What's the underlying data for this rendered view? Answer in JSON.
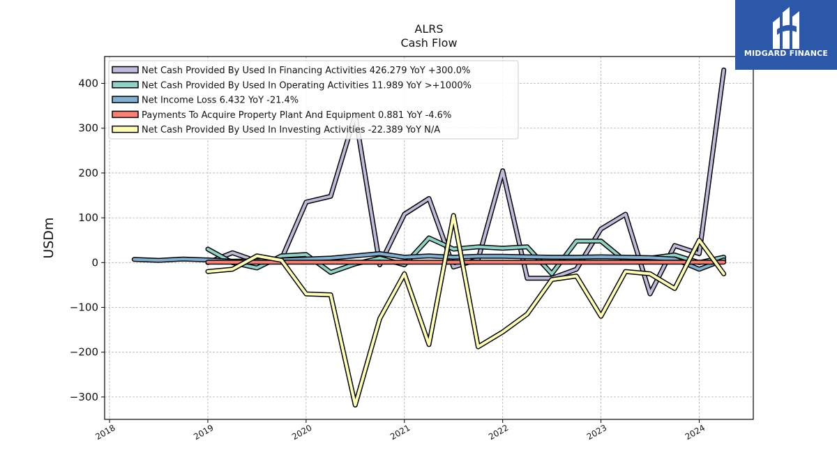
{
  "brand": {
    "name": "MIDGARD FINANCE",
    "icon": "midgard-logo-icon",
    "color": "#2b58a8"
  },
  "chart_data": {
    "type": "line",
    "title": "ALRS",
    "subtitle": "Cash Flow",
    "ylabel": "USDm",
    "xlabel": "",
    "ylim": [
      -350,
      460
    ],
    "xlim": [
      2017.95,
      2024.55
    ],
    "yticks": [
      400,
      300,
      200,
      100,
      0,
      -100,
      -200,
      -300
    ],
    "ytick_labels": [
      "400",
      "300",
      "200",
      "100",
      "0",
      "−100",
      "−200",
      "−300"
    ],
    "xticks": [
      2018,
      2019,
      2020,
      2021,
      2022,
      2023,
      2024
    ],
    "xtick_labels": [
      "2018",
      "2019",
      "2020",
      "2021",
      "2022",
      "2023",
      "2024"
    ],
    "grid": true,
    "legend_position": "top-left",
    "series": [
      {
        "name": "Net Cash Provided By Used In Financing Activities",
        "legend": "Net Cash Provided By Used In Financing Activities  426.279 YoY +300.0%",
        "color": "#bebada",
        "x": [
          2019.0,
          2019.25,
          2019.5,
          2019.75,
          2020.0,
          2020.25,
          2020.5,
          2020.75,
          2021.0,
          2021.25,
          2021.5,
          2021.75,
          2022.0,
          2022.25,
          2022.5,
          2022.75,
          2023.0,
          2023.25,
          2023.5,
          2023.75,
          2024.0,
          2024.25
        ],
        "y": [
          0,
          22,
          3,
          8,
          135,
          148,
          330,
          -5,
          108,
          143,
          -10,
          7,
          205,
          -35,
          -35,
          -15,
          75,
          108,
          -70,
          38,
          20,
          430
        ]
      },
      {
        "name": "Net Cash Provided By Used In Operating Activities",
        "legend": "Net Cash Provided By Used In Operating Activities  11.989 YoY >+1000%",
        "color": "#8dd3c7",
        "x": [
          2019.0,
          2019.25,
          2019.5,
          2019.75,
          2020.0,
          2020.25,
          2020.5,
          2020.75,
          2021.0,
          2021.25,
          2021.5,
          2021.75,
          2022.0,
          2022.25,
          2022.5,
          2022.75,
          2023.0,
          2023.25,
          2023.5,
          2023.75,
          2024.0,
          2024.25
        ],
        "y": [
          30,
          0,
          -12,
          15,
          18,
          -22,
          -3,
          10,
          -5,
          55,
          30,
          35,
          32,
          35,
          -25,
          48,
          48,
          3,
          10,
          17,
          0,
          12
        ]
      },
      {
        "name": "Net Income Loss",
        "legend": "Net Income Loss  6.432 YoY -21.4%",
        "color": "#80b1d3",
        "x": [
          2018.25,
          2018.5,
          2018.75,
          2019.0,
          2019.25,
          2019.5,
          2019.75,
          2020.0,
          2020.25,
          2020.5,
          2020.75,
          2021.0,
          2021.25,
          2021.5,
          2021.75,
          2022.0,
          2022.25,
          2022.5,
          2022.75,
          2023.0,
          2023.25,
          2023.5,
          2023.75,
          2024.0,
          2024.25
        ],
        "y": [
          7,
          5,
          8,
          6,
          3,
          4,
          6,
          8,
          10,
          15,
          20,
          12,
          15,
          12,
          14,
          14,
          13,
          12,
          12,
          13,
          12,
          11,
          8,
          -15,
          6
        ]
      },
      {
        "name": "Payments To Acquire Property Plant And Equipment",
        "legend": "Payments To Acquire Property Plant And Equipment  0.881 YoY -4.6%",
        "color": "#fb8072",
        "x": [
          2019.0,
          2019.25,
          2019.5,
          2019.75,
          2020.0,
          2020.25,
          2020.5,
          2020.75,
          2021.0,
          2021.25,
          2021.5,
          2021.75,
          2022.0,
          2022.25,
          2022.5,
          2022.75,
          2023.0,
          2023.25,
          2023.5,
          2023.75,
          2024.0,
          2024.25
        ],
        "y": [
          1,
          1,
          1,
          1,
          1,
          1,
          1,
          1,
          1,
          1,
          1,
          1,
          1,
          1,
          1,
          1,
          1,
          1,
          1,
          1,
          1,
          1
        ]
      },
      {
        "name": "Net Cash Provided By Used In Investing Activities",
        "legend": "Net Cash Provided By Used In Investing Activities  -22.389 YoY N/A",
        "color": "#ffffb3",
        "x": [
          2019.0,
          2019.25,
          2019.5,
          2019.75,
          2020.0,
          2020.25,
          2020.5,
          2020.75,
          2021.0,
          2021.25,
          2021.5,
          2021.75,
          2022.0,
          2022.25,
          2022.5,
          2022.75,
          2023.0,
          2023.25,
          2023.5,
          2023.75,
          2024.0,
          2024.25
        ],
        "y": [
          -20,
          -15,
          15,
          5,
          -70,
          -72,
          -318,
          -125,
          -25,
          -183,
          105,
          -188,
          -155,
          -115,
          -38,
          -30,
          -120,
          -20,
          -25,
          -58,
          50,
          -25
        ]
      }
    ]
  }
}
